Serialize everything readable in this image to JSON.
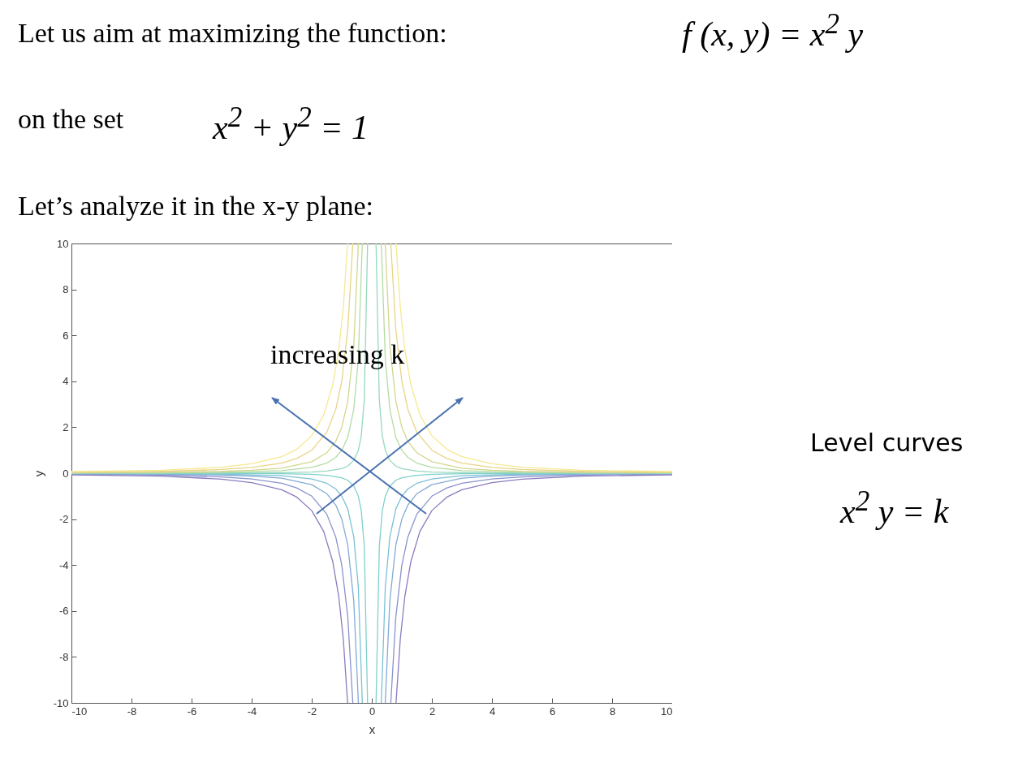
{
  "chart_data": {
    "type": "line",
    "title": "Let us aim at maximizing the function:",
    "xlabel": "x",
    "ylabel": "y",
    "xlim": [
      -10,
      10
    ],
    "ylim": [
      -10,
      10
    ],
    "xticks": [
      -10,
      -8,
      -6,
      -4,
      -2,
      0,
      2,
      4,
      6,
      8,
      10
    ],
    "yticks": [
      -10,
      -8,
      -6,
      -4,
      -2,
      0,
      2,
      4,
      6,
      8,
      10
    ],
    "grid": false,
    "legend": false,
    "annotations": [
      "f (x, y) = x$^{2}$ y",
      "on the set",
      "x$^{2}$ + y$^{2}$ = 1",
      "Let’s analyze it in the x-y plane:",
      "increasing  k",
      "Level curves",
      "x$^{2}$ y = k"
    ],
    "series": [
      {
        "color": "#8b7bbf",
        "x": [
          -10,
          -7,
          -5,
          -4,
          -3,
          -2.5,
          -2,
          -1.6,
          -1.3,
          -1.1,
          -0.95,
          -0.806,
          0,
          0.806,
          0.95,
          1.1,
          1.3,
          1.6,
          2,
          2.5,
          3,
          4,
          5,
          7,
          10
        ],
        "values": [
          -0.07,
          -0.13,
          -0.26,
          -0.41,
          -0.72,
          -1.04,
          -1.63,
          -2.54,
          -3.85,
          -5.37,
          -7.2,
          -10,
          null,
          -10,
          -7.2,
          -5.37,
          -3.85,
          -2.54,
          -1.63,
          -1.04,
          -0.72,
          -0.41,
          -0.26,
          -0.13,
          -0.07
        ]
      },
      {
        "color": "#8a93cc",
        "x": [
          -10,
          -7,
          -5,
          -4,
          -3,
          -2.5,
          -2,
          -1.5,
          -1.2,
          -1,
          -0.8,
          -0.632,
          0,
          0.632,
          0.8,
          1,
          1.2,
          1.5,
          2,
          2.5,
          3,
          4,
          5,
          7,
          10
        ],
        "values": [
          -0.04,
          -0.08,
          -0.16,
          -0.25,
          -0.44,
          -0.64,
          -1,
          -1.78,
          -2.78,
          -4,
          -6.25,
          -10,
          null,
          -10,
          -6.25,
          -4,
          -2.78,
          -1.78,
          -1,
          -0.64,
          -0.44,
          -0.25,
          -0.16,
          -0.08,
          -0.04
        ]
      },
      {
        "color": "#83aad6",
        "x": [
          -10,
          -7,
          -5,
          -4,
          -3,
          -2,
          -1.5,
          -1.2,
          -1,
          -0.8,
          -0.6,
          -0.447,
          0,
          0.447,
          0.6,
          0.8,
          1,
          1.2,
          1.5,
          2,
          3,
          4,
          5,
          7,
          10
        ],
        "values": [
          -0.02,
          -0.04,
          -0.08,
          -0.13,
          -0.22,
          -0.5,
          -0.89,
          -1.39,
          -2,
          -3.13,
          -5.56,
          -10,
          null,
          -10,
          -5.56,
          -3.13,
          -2,
          -1.39,
          -0.89,
          -0.5,
          -0.22,
          -0.13,
          -0.08,
          -0.04,
          -0.02
        ]
      },
      {
        "color": "#7cc0d6",
        "x": [
          -10,
          -7,
          -5,
          -3,
          -2,
          -1.5,
          -1.2,
          -1,
          -0.8,
          -0.6,
          -0.45,
          -0.316,
          0,
          0.316,
          0.45,
          0.6,
          0.8,
          1,
          1.2,
          1.5,
          2,
          3,
          5,
          7,
          10
        ],
        "values": [
          -0.01,
          -0.02,
          -0.04,
          -0.11,
          -0.25,
          -0.44,
          -0.69,
          -1,
          -1.56,
          -2.78,
          -4.94,
          -10,
          null,
          -10,
          -4.94,
          -2.78,
          -1.56,
          -1,
          -0.69,
          -0.44,
          -0.25,
          -0.11,
          -0.04,
          -0.02,
          -0.01
        ]
      },
      {
        "color": "#80d0cc",
        "x": [
          -10,
          -5,
          -3,
          -2,
          -1.5,
          -1,
          -0.8,
          -0.6,
          -0.45,
          -0.35,
          -0.25,
          -0.141,
          0,
          0.141,
          0.25,
          0.35,
          0.45,
          0.6,
          0.8,
          1,
          1.5,
          2,
          3,
          5,
          10
        ],
        "values": [
          0,
          -0.01,
          -0.02,
          -0.05,
          -0.09,
          -0.2,
          -0.31,
          -0.56,
          -0.99,
          -1.63,
          -3.2,
          -10,
          null,
          -10,
          -3.2,
          -1.63,
          -0.99,
          -0.56,
          -0.31,
          -0.2,
          -0.09,
          -0.05,
          -0.02,
          -0.01,
          0
        ]
      },
      {
        "color": "#96d8bc",
        "x": [
          -10,
          -5,
          -3,
          -2,
          -1.5,
          -1,
          -0.8,
          -0.6,
          -0.45,
          -0.35,
          -0.25,
          -0.141,
          0,
          0.141,
          0.25,
          0.35,
          0.45,
          0.6,
          0.8,
          1,
          1.5,
          2,
          3,
          5,
          10
        ],
        "values": [
          0,
          0.01,
          0.02,
          0.05,
          0.09,
          0.2,
          0.31,
          0.56,
          0.99,
          1.63,
          3.2,
          10,
          null,
          10,
          3.2,
          1.63,
          0.99,
          0.56,
          0.31,
          0.2,
          0.09,
          0.05,
          0.02,
          0.01,
          0
        ]
      },
      {
        "color": "#b4dca4",
        "x": [
          -10,
          -7,
          -5,
          -3,
          -2,
          -1.5,
          -1.2,
          -1,
          -0.8,
          -0.6,
          -0.45,
          -0.316,
          0,
          0.316,
          0.45,
          0.6,
          0.8,
          1,
          1.2,
          1.5,
          2,
          3,
          5,
          7,
          10
        ],
        "values": [
          0.01,
          0.02,
          0.04,
          0.11,
          0.25,
          0.44,
          0.69,
          1,
          1.56,
          2.78,
          4.94,
          10,
          null,
          10,
          4.94,
          2.78,
          1.56,
          1,
          0.69,
          0.44,
          0.25,
          0.11,
          0.04,
          0.02,
          0.01
        ]
      },
      {
        "color": "#d3d68e",
        "x": [
          -10,
          -7,
          -5,
          -4,
          -3,
          -2,
          -1.5,
          -1.2,
          -1,
          -0.8,
          -0.6,
          -0.447,
          0,
          0.447,
          0.6,
          0.8,
          1,
          1.2,
          1.5,
          2,
          3,
          4,
          5,
          7,
          10
        ],
        "values": [
          0.02,
          0.04,
          0.08,
          0.13,
          0.22,
          0.5,
          0.89,
          1.39,
          2,
          3.13,
          5.56,
          10,
          null,
          10,
          5.56,
          3.13,
          2,
          1.39,
          0.89,
          0.5,
          0.22,
          0.13,
          0.08,
          0.04,
          0.02
        ]
      },
      {
        "color": "#e9d486",
        "x": [
          -10,
          -7,
          -5,
          -4,
          -3,
          -2.5,
          -2,
          -1.5,
          -1.2,
          -1,
          -0.8,
          -0.632,
          0,
          0.632,
          0.8,
          1,
          1.2,
          1.5,
          2,
          2.5,
          3,
          4,
          5,
          7,
          10
        ],
        "values": [
          0.04,
          0.08,
          0.16,
          0.25,
          0.44,
          0.64,
          1,
          1.78,
          2.78,
          4,
          6.25,
          10,
          null,
          10,
          6.25,
          4,
          2.78,
          1.78,
          1,
          0.64,
          0.44,
          0.25,
          0.16,
          0.08,
          0.04
        ]
      },
      {
        "color": "#f6e890",
        "x": [
          -10,
          -7,
          -5,
          -4,
          -3,
          -2.5,
          -2,
          -1.6,
          -1.3,
          -1.1,
          -0.95,
          -0.806,
          0,
          0.806,
          0.95,
          1.1,
          1.3,
          1.6,
          2,
          2.5,
          3,
          4,
          5,
          7,
          10
        ],
        "values": [
          0.07,
          0.13,
          0.26,
          0.41,
          0.72,
          1.04,
          1.63,
          2.54,
          3.85,
          5.37,
          7.2,
          10,
          null,
          10,
          7.2,
          5.37,
          3.85,
          2.54,
          1.63,
          1.04,
          0.72,
          0.41,
          0.26,
          0.13,
          0.07
        ]
      }
    ]
  }
}
